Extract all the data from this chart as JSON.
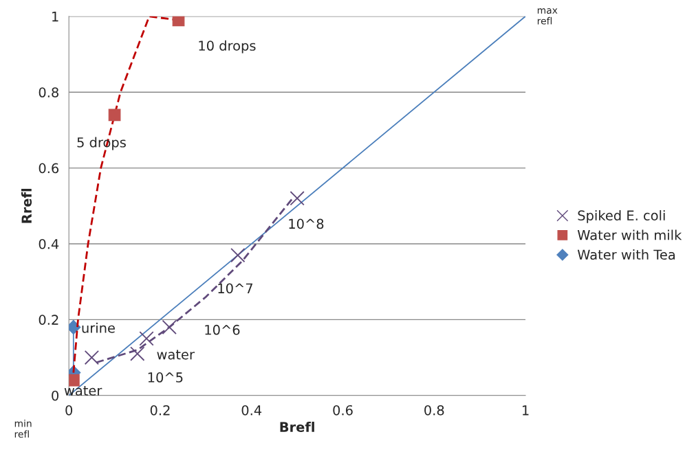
{
  "chart_data": {
    "type": "scatter",
    "xlabel": "Brefl",
    "ylabel": "Rrefl",
    "xlim": [
      0,
      1
    ],
    "ylim": [
      0,
      1
    ],
    "xticks": [
      0,
      0.2,
      0.4,
      0.6,
      0.8,
      1
    ],
    "yticks": [
      0,
      0.2,
      0.4,
      0.6,
      0.8,
      1
    ],
    "grid": "y",
    "legend": "right",
    "series": [
      {
        "name": "Spiked E. coli",
        "marker": "cross",
        "color": "#604a7b",
        "x": [
          0.05,
          0.15,
          0.17,
          0.22,
          0.37,
          0.5
        ],
        "values": [
          0.1,
          0.11,
          0.15,
          0.18,
          0.37,
          0.52
        ]
      },
      {
        "name": "Water with milk",
        "marker": "square",
        "color": "#c0504d",
        "x": [
          0.01,
          0.1,
          0.24
        ],
        "values": [
          0.04,
          0.74,
          0.99
        ]
      },
      {
        "name": "Water with Tea",
        "type": "line",
        "marker": "diamond",
        "line_style": "solid",
        "color": "#4f81bd",
        "x": [
          0.01,
          0.01
        ],
        "values": [
          0.18,
          0.06
        ]
      },
      {
        "type": "line",
        "marker": "none",
        "line_style": "solid",
        "color": "#4a7ebb",
        "x": [
          0,
          1
        ],
        "values": [
          0,
          1
        ]
      },
      {
        "type": "line",
        "marker": "none",
        "line_style": "dashed",
        "color": "#604a7b",
        "x": [
          0.06,
          0.15,
          0.22,
          0.3,
          0.38,
          0.49
        ],
        "values": [
          0.087,
          0.12,
          0.18,
          0.26,
          0.355,
          0.52
        ]
      },
      {
        "type": "line",
        "marker": "none",
        "line_style": "dashed",
        "color": "#c00000",
        "x": [
          0.01,
          0.02,
          0.042,
          0.07,
          0.113,
          0.176,
          0.24
        ],
        "values": [
          0.06,
          0.2,
          0.4,
          0.6,
          0.8,
          1.0,
          0.99
        ]
      }
    ],
    "annotations": [
      {
        "text": "10 drops",
        "x": 0.24,
        "y": 0.99
      },
      {
        "text": "5 drops",
        "x": 0.1,
        "y": 0.74
      },
      {
        "text": "urine",
        "x": 0.01,
        "y": 0.18
      },
      {
        "text": "water",
        "x": 0.01,
        "y": 0.04
      },
      {
        "text": "water",
        "x": 0.15,
        "y": 0.11
      },
      {
        "text": "10^5",
        "x": 0.15,
        "y": 0.11
      },
      {
        "text": "10^6",
        "x": 0.22,
        "y": 0.18
      },
      {
        "text": "10^7",
        "x": 0.37,
        "y": 0.37
      },
      {
        "text": "10^8",
        "x": 0.5,
        "y": 0.52
      },
      "max\nrefl",
      "min\nrefl"
    ]
  }
}
